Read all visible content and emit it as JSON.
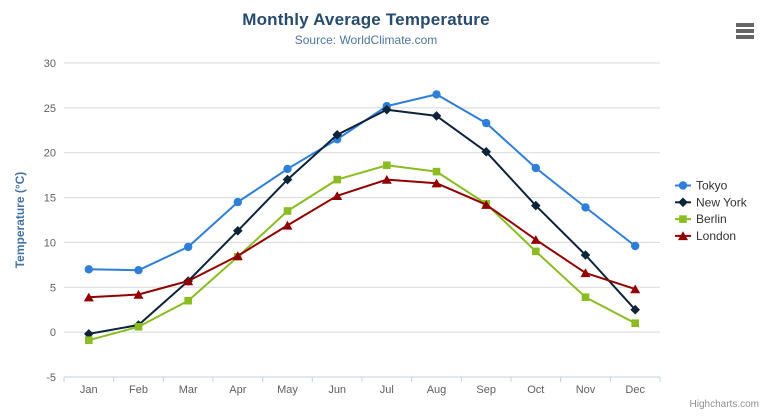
{
  "header": {
    "title": "Monthly Average Temperature",
    "subtitle": "Source: WorldClimate.com"
  },
  "toolbar": {
    "menu_icon": "hamburger"
  },
  "credits": "Highcharts.com",
  "chart_data": {
    "type": "line",
    "title": "Monthly Average Temperature",
    "subtitle": "Source: WorldClimate.com",
    "categories": [
      "Jan",
      "Feb",
      "Mar",
      "Apr",
      "May",
      "Jun",
      "Jul",
      "Aug",
      "Sep",
      "Oct",
      "Nov",
      "Dec"
    ],
    "xlabel": "",
    "ylabel": "Temperature (°C)",
    "ylim": [
      -5,
      30
    ],
    "ytick_step": 5,
    "grid": true,
    "legend_position": "right",
    "axis_colors": {
      "grid": "#d8d8d8",
      "axis_line": "#c0d0e0",
      "tick_label": "#606060",
      "axis_title": "#4572a7",
      "legend_text": "#333333"
    },
    "series": [
      {
        "name": "Tokyo",
        "color": "#2f7ed8",
        "marker": "circle",
        "values": [
          7.0,
          6.9,
          9.5,
          14.5,
          18.2,
          21.5,
          25.2,
          26.5,
          23.3,
          18.3,
          13.9,
          9.6
        ]
      },
      {
        "name": "New York",
        "color": "#0d233a",
        "marker": "diamond",
        "values": [
          -0.2,
          0.8,
          5.7,
          11.3,
          17.0,
          22.0,
          24.8,
          24.1,
          20.1,
          14.1,
          8.6,
          2.5
        ]
      },
      {
        "name": "Berlin",
        "color": "#8bbc21",
        "marker": "square",
        "values": [
          -0.9,
          0.6,
          3.5,
          8.4,
          13.5,
          17.0,
          18.6,
          17.9,
          14.3,
          9.0,
          3.9,
          1.0
        ]
      },
      {
        "name": "London",
        "color": "#910000",
        "marker": "triangle",
        "values": [
          3.9,
          4.2,
          5.7,
          8.5,
          11.9,
          15.2,
          17.0,
          16.6,
          14.2,
          10.3,
          6.6,
          4.8
        ]
      }
    ]
  }
}
